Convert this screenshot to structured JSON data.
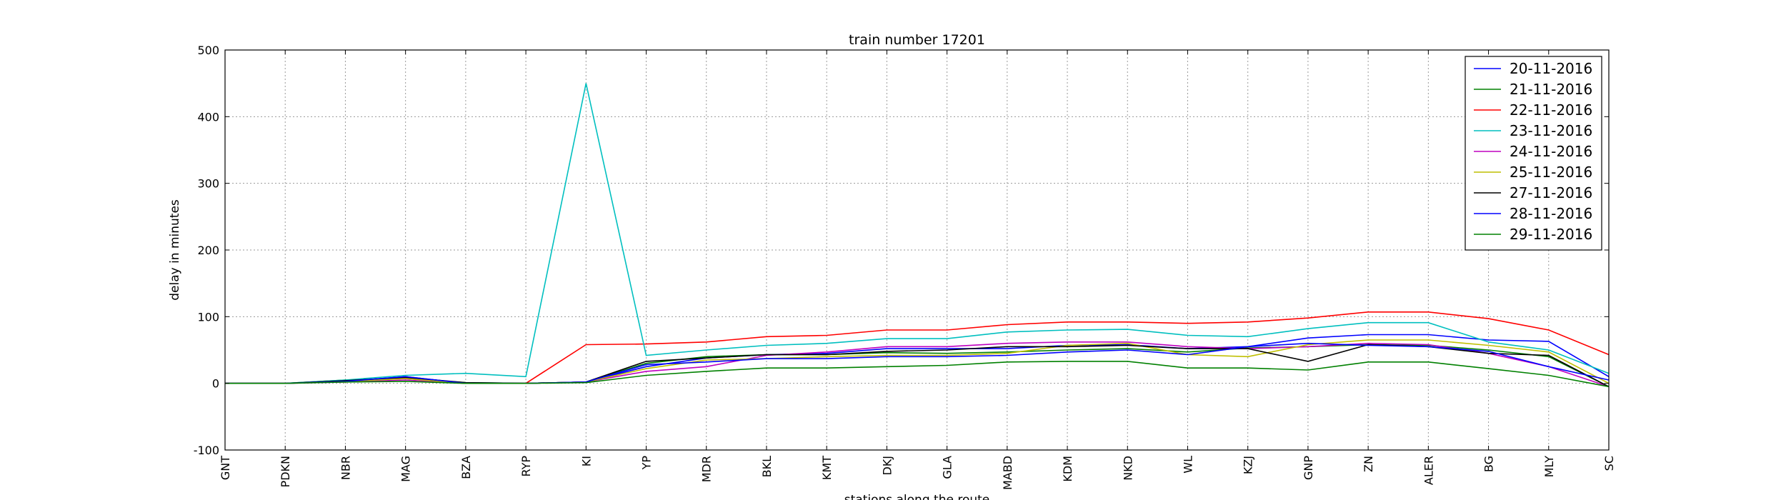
{
  "chart_data": {
    "type": "line",
    "title": "train number 17201",
    "xlabel": "stations along the route",
    "ylabel": "delay in minutes",
    "ylim": [
      -100,
      500
    ],
    "yticks": [
      -100,
      0,
      100,
      200,
      300,
      400,
      500
    ],
    "grid": true,
    "legend_position": "top-right",
    "categories": [
      "GNT",
      "PDKN",
      "NBR",
      "MAG",
      "BZA",
      "RYP",
      "KI",
      "YP",
      "MDR",
      "BKL",
      "KMT",
      "DKJ",
      "GLA",
      "MABD",
      "KDM",
      "NKD",
      "WL",
      "KZJ",
      "GNP",
      "ZN",
      "ALER",
      "BG",
      "MLY",
      "SC"
    ],
    "series": [
      {
        "name": "20-11-2016",
        "color": "#0000ff",
        "values": [
          0,
          0,
          3,
          10,
          0,
          0,
          2,
          25,
          38,
          43,
          45,
          52,
          52,
          52,
          57,
          58,
          52,
          55,
          68,
          73,
          73,
          65,
          63,
          10
        ]
      },
      {
        "name": "21-11-2016",
        "color": "#008000",
        "values": [
          0,
          0,
          5,
          7,
          1,
          0,
          2,
          30,
          40,
          43,
          43,
          46,
          45,
          47,
          50,
          52,
          47,
          53,
          55,
          58,
          57,
          50,
          40,
          -5
        ]
      },
      {
        "name": "22-11-2016",
        "color": "#ff0000",
        "values": [
          0,
          0,
          3,
          8,
          0,
          0,
          58,
          59,
          62,
          70,
          72,
          80,
          80,
          88,
          92,
          92,
          90,
          92,
          98,
          107,
          107,
          97,
          80,
          43
        ]
      },
      {
        "name": "23-11-2016",
        "color": "#00bfbf",
        "values": [
          0,
          0,
          5,
          12,
          15,
          10,
          450,
          42,
          50,
          57,
          60,
          67,
          67,
          77,
          80,
          81,
          72,
          70,
          82,
          91,
          91,
          62,
          50,
          15
        ]
      },
      {
        "name": "24-11-2016",
        "color": "#bf00bf",
        "values": [
          0,
          0,
          2,
          5,
          0,
          0,
          2,
          18,
          25,
          42,
          47,
          55,
          55,
          60,
          62,
          62,
          55,
          52,
          55,
          60,
          58,
          45,
          25,
          -5
        ]
      },
      {
        "name": "25-11-2016",
        "color": "#bfbf00",
        "values": [
          0,
          0,
          3,
          7,
          0,
          0,
          2,
          22,
          35,
          37,
          40,
          42,
          42,
          45,
          57,
          60,
          43,
          40,
          58,
          65,
          65,
          57,
          47,
          0
        ]
      },
      {
        "name": "27-11-2016",
        "color": "#000000",
        "values": [
          0,
          0,
          4,
          9,
          1,
          0,
          2,
          33,
          38,
          43,
          43,
          48,
          50,
          55,
          55,
          57,
          52,
          52,
          33,
          58,
          55,
          45,
          42,
          -5
        ]
      },
      {
        "name": "28-11-2016",
        "color": "#0000ff",
        "values": [
          0,
          0,
          3,
          10,
          0,
          0,
          2,
          28,
          32,
          37,
          37,
          40,
          40,
          42,
          47,
          50,
          43,
          55,
          60,
          57,
          55,
          48,
          25,
          5
        ]
      },
      {
        "name": "29-11-2016",
        "color": "#008000",
        "values": [
          0,
          0,
          2,
          3,
          0,
          0,
          1,
          12,
          18,
          23,
          23,
          25,
          27,
          32,
          33,
          33,
          23,
          23,
          20,
          32,
          32,
          22,
          12,
          -5
        ]
      }
    ]
  }
}
